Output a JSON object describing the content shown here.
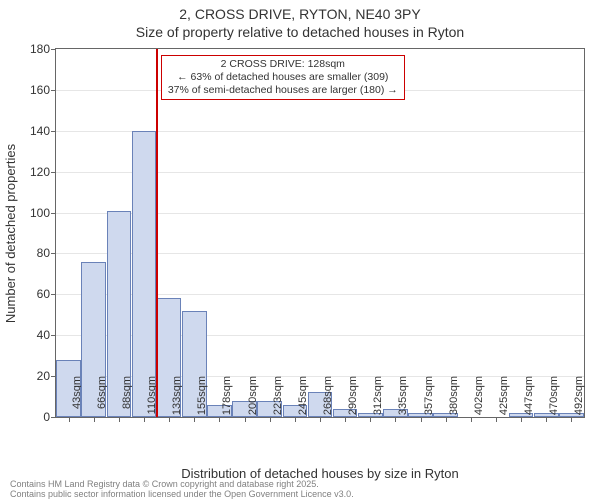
{
  "title_main": "2, CROSS DRIVE, RYTON, NE40 3PY",
  "title_sub": "Size of property relative to detached houses in Ryton",
  "y_axis_label": "Number of detached properties",
  "x_axis_label": "Distribution of detached houses by size in Ryton",
  "fineprint_line1": "Contains HM Land Registry data © Crown copyright and database right 2025.",
  "fineprint_line2": "Contains public sector information licensed under the Open Government Licence v3.0.",
  "chart": {
    "type": "histogram",
    "background_color": "#ffffff",
    "grid_color": "#e6e6e6",
    "axis_color": "#666666",
    "bar_fill": "#cfd9ee",
    "bar_stroke": "#6a82b8",
    "marker_color": "#cc0000",
    "text_color": "#333333",
    "title_fontsize": 14,
    "axis_label_fontsize": 13,
    "tick_fontsize": 12,
    "xtick_fontsize": 11,
    "callout_fontsize": 10.5,
    "y": {
      "min": 0,
      "max": 180,
      "ticks": [
        0,
        20,
        40,
        60,
        80,
        100,
        120,
        140,
        160,
        180
      ]
    },
    "x_labels": [
      "43sqm",
      "66sqm",
      "88sqm",
      "110sqm",
      "133sqm",
      "155sqm",
      "178sqm",
      "200sqm",
      "223sqm",
      "245sqm",
      "268sqm",
      "290sqm",
      "312sqm",
      "335sqm",
      "357sqm",
      "380sqm",
      "402sqm",
      "425sqm",
      "447sqm",
      "470sqm",
      "492sqm"
    ],
    "values": [
      28,
      76,
      101,
      140,
      58,
      52,
      6,
      8,
      8,
      6,
      12,
      4,
      2,
      4,
      2,
      2,
      0,
      0,
      2,
      2,
      2
    ],
    "marker_index": 4,
    "callout": {
      "line1": "2 CROSS DRIVE: 128sqm",
      "line2": "← 63% of detached houses are smaller (309)",
      "line3": "37% of semi-detached houses are larger (180) →"
    }
  }
}
